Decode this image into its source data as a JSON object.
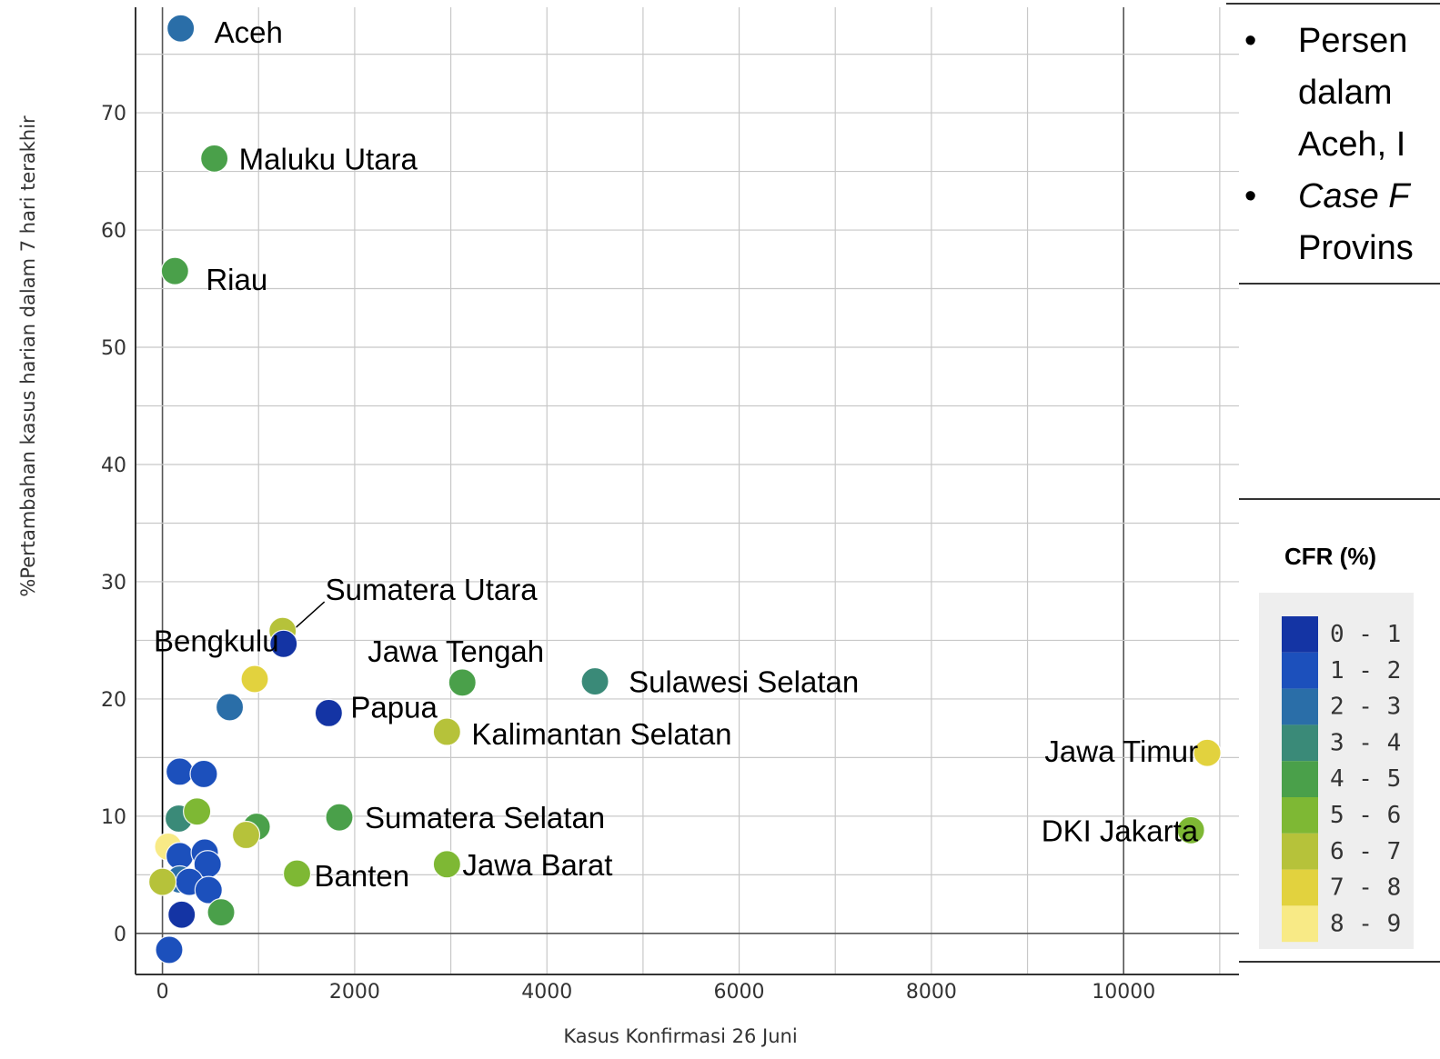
{
  "chart_data": {
    "type": "scatter",
    "xlabel": "Kasus Konfirmasi 26 Juni",
    "ylabel": "%Pertambahan kasus harian dalam 7 hari terakhir",
    "xlim": [
      -280,
      11200
    ],
    "ylim": [
      -3.5,
      79
    ],
    "xticks": [
      "0",
      "2000",
      "4000",
      "6000",
      "8000",
      "10000"
    ],
    "yticks": [
      "0",
      "10",
      "20",
      "30",
      "40",
      "50",
      "60",
      "70"
    ],
    "grid": true,
    "legend": {
      "title": "CFR (%)",
      "placement": "right",
      "entries": [
        {
          "label": "0 - 1",
          "color": "#1434a4"
        },
        {
          "label": "1 - 2",
          "color": "#1c50bc"
        },
        {
          "label": "2 - 3",
          "color": "#2a6ea8"
        },
        {
          "label": "3 - 4",
          "color": "#3a8a78"
        },
        {
          "label": "4 - 5",
          "color": "#4aa04a"
        },
        {
          "label": "5 - 6",
          "color": "#7eb834"
        },
        {
          "label": "6 - 7",
          "color": "#b6c23a"
        },
        {
          "label": "7 - 8",
          "color": "#e2d23e"
        },
        {
          "label": "8 - 9",
          "color": "#f8ea86"
        }
      ]
    },
    "points": [
      {
        "name": "Aceh",
        "x": 190,
        "y": 77.2,
        "cfr": "2 - 3"
      },
      {
        "name": "Maluku Utara",
        "x": 540,
        "y": 66.1,
        "cfr": "4 - 5"
      },
      {
        "name": "Riau",
        "x": 130,
        "y": 56.5,
        "cfr": "4 - 5"
      },
      {
        "name": "Sumatera Utara",
        "x": 1250,
        "y": 25.8,
        "cfr": "6 - 7"
      },
      {
        "name": "Bengkulu",
        "x": 1260,
        "y": 24.7,
        "cfr": "0 - 1"
      },
      {
        "name": "Jawa Tengah",
        "x": 3120,
        "y": 21.4,
        "cfr": "4 - 5"
      },
      {
        "name": "Sulawesi Selatan",
        "x": 4500,
        "y": 21.5,
        "cfr": "3 - 4"
      },
      {
        "name": "Papua",
        "x": 1730,
        "y": 18.8,
        "cfr": "0 - 1"
      },
      {
        "name": "Kalimantan Selatan",
        "x": 2960,
        "y": 17.2,
        "cfr": "6 - 7"
      },
      {
        "name": "Jawa Timur",
        "x": 10870,
        "y": 15.4,
        "cfr": "7 - 8"
      },
      {
        "name": "Sumatera Selatan",
        "x": 1840,
        "y": 9.9,
        "cfr": "4 - 5"
      },
      {
        "name": "DKI Jakarta",
        "x": 10700,
        "y": 8.8,
        "cfr": "5 - 6"
      },
      {
        "name": "Banten",
        "x": 1400,
        "y": 5.1,
        "cfr": "5 - 6"
      },
      {
        "name": "Jawa Barat",
        "x": 2960,
        "y": 5.9,
        "cfr": "5 - 6"
      },
      {
        "name": "",
        "x": 960,
        "y": 21.7,
        "cfr": "7 - 8"
      },
      {
        "name": "",
        "x": 700,
        "y": 19.3,
        "cfr": "2 - 3"
      },
      {
        "name": "",
        "x": 180,
        "y": 13.8,
        "cfr": "1 - 2"
      },
      {
        "name": "",
        "x": 430,
        "y": 13.6,
        "cfr": "1 - 2"
      },
      {
        "name": "",
        "x": 170,
        "y": 9.8,
        "cfr": "3 - 4"
      },
      {
        "name": "",
        "x": 360,
        "y": 10.4,
        "cfr": "5 - 6"
      },
      {
        "name": "",
        "x": 980,
        "y": 9.1,
        "cfr": "4 - 5"
      },
      {
        "name": "",
        "x": 870,
        "y": 8.4,
        "cfr": "6 - 7"
      },
      {
        "name": "",
        "x": 60,
        "y": 7.4,
        "cfr": "8 - 9"
      },
      {
        "name": "",
        "x": 180,
        "y": 6.6,
        "cfr": "1 - 2"
      },
      {
        "name": "",
        "x": 440,
        "y": 6.9,
        "cfr": "1 - 2"
      },
      {
        "name": "",
        "x": 470,
        "y": 5.9,
        "cfr": "1 - 2"
      },
      {
        "name": "",
        "x": 180,
        "y": 4.6,
        "cfr": "2 - 3"
      },
      {
        "name": "",
        "x": 280,
        "y": 4.4,
        "cfr": "1 - 2"
      },
      {
        "name": "",
        "x": 0,
        "y": 4.4,
        "cfr": "6 - 7"
      },
      {
        "name": "",
        "x": 480,
        "y": 3.7,
        "cfr": "1 - 2"
      },
      {
        "name": "",
        "x": 610,
        "y": 1.8,
        "cfr": "4 - 5"
      },
      {
        "name": "",
        "x": 200,
        "y": 1.6,
        "cfr": "0 - 1"
      },
      {
        "name": "",
        "x": 70,
        "y": -1.4,
        "cfr": "1 - 2"
      }
    ]
  },
  "side_text": {
    "bullet_1_lines": [
      "Persen",
      "dalam",
      "Aceh, I"
    ],
    "bullet_2_line_1": "Case F",
    "bullet_2_line_2": "Provins",
    "bullet_symbol": "•"
  }
}
